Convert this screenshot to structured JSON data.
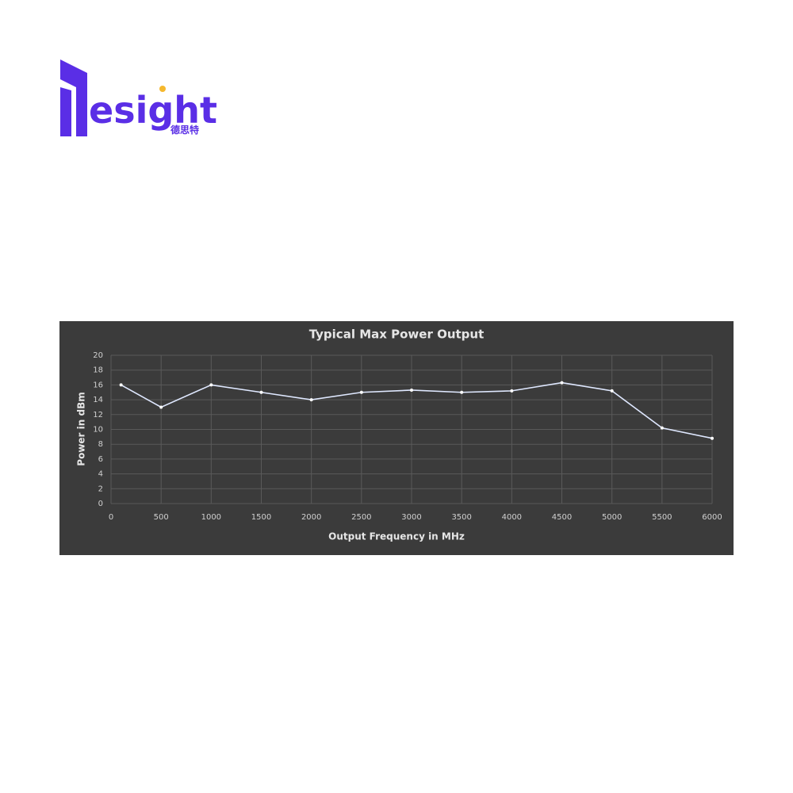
{
  "logo": {
    "text": "esight",
    "subtitle": "德思特"
  },
  "chart_data": {
    "type": "line",
    "title": "Typical Max Power Output",
    "x_label": "Output Frequency in MHz",
    "y_label": "Power in dBm",
    "x": [
      100,
      500,
      1000,
      1500,
      2000,
      2500,
      3000,
      3500,
      4000,
      4500,
      5000,
      5500,
      6000
    ],
    "series": [
      {
        "name": "Power",
        "color": "#dfe8ff",
        "values": [
          16,
          13,
          16,
          15,
          14,
          15,
          15.3,
          15,
          15.2,
          16.3,
          15.2,
          10.2,
          8.8
        ]
      }
    ],
    "xlim": [
      0,
      6000
    ],
    "xticks": [
      0,
      500,
      1000,
      1500,
      2000,
      2500,
      3000,
      3500,
      4000,
      4500,
      5000,
      5500,
      6000
    ],
    "ylim": [
      0,
      20
    ],
    "yticks": [
      0,
      2,
      4,
      6,
      8,
      10,
      12,
      14,
      16,
      18,
      20
    ],
    "grid": true
  }
}
